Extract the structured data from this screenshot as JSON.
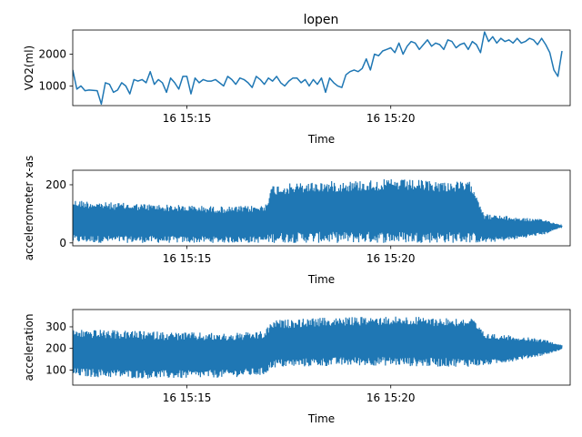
{
  "chart_data": [
    {
      "type": "line",
      "title": "lopen",
      "xlabel": "Time",
      "ylabel": "VO2(ml)",
      "color": "#1f77b4",
      "x_unit": "minutes after 15:00",
      "xlim": [
        12.2,
        24.4
      ],
      "ylim": [
        380,
        2760
      ],
      "xticks": [
        {
          "value": 15,
          "label": "16 15:15"
        },
        {
          "value": 20,
          "label": "16 15:20"
        }
      ],
      "yticks": [
        {
          "value": 1000,
          "label": "1000"
        },
        {
          "value": 2000,
          "label": "2000"
        }
      ],
      "series": [
        {
          "name": "VO2(ml)",
          "x": [
            12.2,
            12.3,
            12.4,
            12.5,
            12.6,
            12.7,
            12.8,
            12.9,
            13.0,
            13.1,
            13.2,
            13.3,
            13.4,
            13.5,
            13.6,
            13.7,
            13.8,
            13.9,
            14.0,
            14.1,
            14.2,
            14.3,
            14.4,
            14.5,
            14.6,
            14.7,
            14.8,
            14.9,
            15.0,
            15.1,
            15.2,
            15.3,
            15.4,
            15.5,
            15.6,
            15.7,
            15.8,
            15.9,
            16.0,
            16.1,
            16.2,
            16.3,
            16.4,
            16.5,
            16.6,
            16.7,
            16.8,
            16.9,
            17.0,
            17.1,
            17.2,
            17.3,
            17.4,
            17.5,
            17.6,
            17.7,
            17.8,
            17.9,
            18.0,
            18.1,
            18.2,
            18.3,
            18.4,
            18.5,
            18.6,
            18.7,
            18.8,
            18.9,
            19.0,
            19.1,
            19.2,
            19.3,
            19.4,
            19.5,
            19.6,
            19.7,
            19.8,
            19.9,
            20.0,
            20.1,
            20.2,
            20.3,
            20.4,
            20.5,
            20.6,
            20.7,
            20.8,
            20.9,
            21.0,
            21.1,
            21.2,
            21.3,
            21.4,
            21.5,
            21.6,
            21.7,
            21.8,
            21.9,
            22.0,
            22.1,
            22.2,
            22.3,
            22.4,
            22.5,
            22.6,
            22.7,
            22.8,
            22.9,
            23.0,
            23.1,
            23.2,
            23.3,
            23.4,
            23.5,
            23.6,
            23.7,
            23.8,
            23.9,
            24.0,
            24.1,
            24.2
          ],
          "y": [
            1500,
            900,
            1000,
            850,
            870,
            860,
            850,
            430,
            1100,
            1050,
            800,
            870,
            1100,
            1000,
            750,
            1200,
            1150,
            1200,
            1100,
            1450,
            1050,
            1200,
            1100,
            800,
            1250,
            1100,
            900,
            1300,
            1300,
            750,
            1250,
            1100,
            1200,
            1150,
            1150,
            1200,
            1100,
            1000,
            1300,
            1200,
            1050,
            1250,
            1200,
            1100,
            950,
            1300,
            1200,
            1050,
            1250,
            1150,
            1300,
            1100,
            1000,
            1150,
            1250,
            1250,
            1100,
            1200,
            1000,
            1200,
            1050,
            1250,
            800,
            1250,
            1100,
            1000,
            950,
            1350,
            1450,
            1500,
            1450,
            1550,
            1850,
            1500,
            2000,
            1950,
            2100,
            2150,
            2200,
            2050,
            2350,
            2000,
            2250,
            2400,
            2350,
            2150,
            2300,
            2450,
            2250,
            2350,
            2300,
            2150,
            2450,
            2400,
            2200,
            2300,
            2350,
            2150,
            2400,
            2300,
            2050,
            2700,
            2400,
            2550,
            2350,
            2500,
            2400,
            2450,
            2350,
            2500,
            2350,
            2400,
            2500,
            2450,
            2300,
            2500,
            2300,
            2050,
            1500,
            1300,
            2100
          ]
        }
      ]
    },
    {
      "type": "line",
      "title": "",
      "xlabel": "Time",
      "ylabel": "accelerometer x-as",
      "color": "#1f77b4",
      "x_unit": "minutes after 15:00",
      "xlim": [
        12.2,
        24.4
      ],
      "ylim": [
        -10,
        250
      ],
      "xticks": [
        {
          "value": 15,
          "label": "16 15:15"
        },
        {
          "value": 20,
          "label": "16 15:20"
        }
      ],
      "yticks": [
        {
          "value": 0,
          "label": "0"
        },
        {
          "value": 200,
          "label": "200"
        }
      ],
      "series": [
        {
          "name": "accelerometer x-as (envelope)",
          "x": [
            12.2,
            13.0,
            14.0,
            15.0,
            16.0,
            16.9,
            17.1,
            18.0,
            19.0,
            20.0,
            21.0,
            22.0,
            22.3,
            23.0,
            23.8,
            24.2
          ],
          "upper": [
            150,
            140,
            135,
            130,
            125,
            130,
            200,
            210,
            215,
            220,
            215,
            210,
            100,
            90,
            80,
            60
          ],
          "lower": [
            0,
            0,
            0,
            0,
            0,
            0,
            0,
            0,
            0,
            0,
            0,
            0,
            0,
            10,
            30,
            55
          ]
        }
      ]
    },
    {
      "type": "line",
      "title": "",
      "xlabel": "Time",
      "ylabel": "acceleration",
      "color": "#1f77b4",
      "x_unit": "minutes after 15:00",
      "xlim": [
        12.2,
        24.4
      ],
      "ylim": [
        30,
        380
      ],
      "xticks": [
        {
          "value": 15,
          "label": "16 15:15"
        },
        {
          "value": 20,
          "label": "16 15:20"
        }
      ],
      "yticks": [
        {
          "value": 100,
          "label": "100"
        },
        {
          "value": 200,
          "label": "200"
        },
        {
          "value": 300,
          "label": "300"
        }
      ],
      "series": [
        {
          "name": "acceleration (envelope)",
          "x": [
            12.2,
            13.0,
            14.0,
            15.0,
            16.0,
            16.9,
            17.1,
            18.0,
            19.0,
            20.0,
            21.0,
            22.0,
            22.3,
            23.0,
            23.8,
            24.2
          ],
          "upper": [
            290,
            285,
            280,
            275,
            270,
            280,
            330,
            340,
            345,
            350,
            345,
            340,
            270,
            260,
            240,
            215
          ],
          "lower": [
            70,
            65,
            60,
            60,
            65,
            75,
            110,
            115,
            120,
            120,
            115,
            115,
            120,
            140,
            170,
            195
          ]
        }
      ]
    }
  ]
}
